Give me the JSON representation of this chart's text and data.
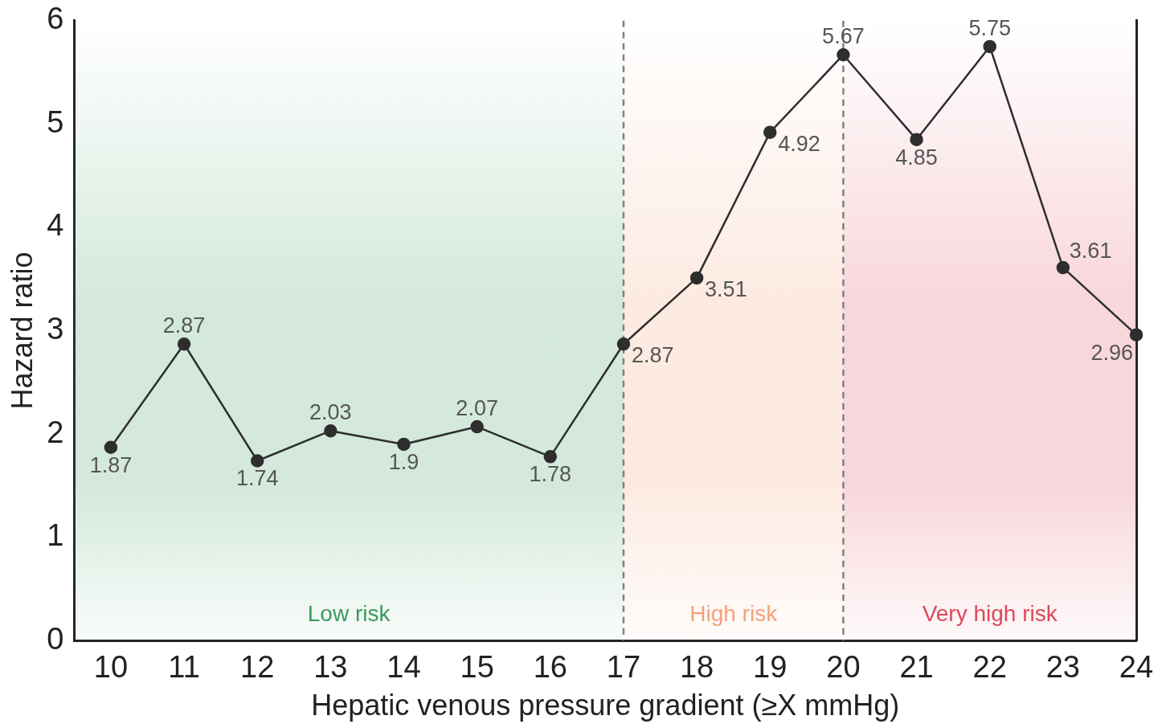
{
  "chart_data": {
    "type": "line",
    "xlabel": "Hepatic venous pressure gradient (≥X mmHg)",
    "ylabel": "Hazard ratio",
    "x": [
      10,
      11,
      12,
      13,
      14,
      15,
      16,
      17,
      18,
      19,
      20,
      21,
      22,
      23,
      24
    ],
    "series": [
      {
        "color": "#2e2e2e",
        "values": [
          1.87,
          2.87,
          1.74,
          2.03,
          1.9,
          2.07,
          1.78,
          2.87,
          3.51,
          4.92,
          5.67,
          4.85,
          5.75,
          3.61,
          2.96
        ]
      }
    ],
    "xlim": [
      9.5,
      24
    ],
    "xticks": [
      10,
      11,
      12,
      13,
      14,
      15,
      16,
      17,
      18,
      19,
      20,
      21,
      22,
      23,
      24
    ],
    "ylim": [
      0,
      6
    ],
    "yticks": [
      0,
      1,
      2,
      3,
      4,
      5,
      6
    ],
    "bands": [
      {
        "axis": "x",
        "from": 9.5,
        "to": 17,
        "label": "Low risk",
        "color": "#3a9a5e"
      },
      {
        "axis": "x",
        "from": 17,
        "to": 20,
        "label": "High risk",
        "color": "#f4a27a"
      },
      {
        "axis": "x",
        "from": 20,
        "to": 24,
        "label": "Very high risk",
        "color": "#e0475a"
      }
    ],
    "ref_lines": [
      {
        "axis": "x",
        "value": 17,
        "color": "#808080",
        "line_style": "dashed"
      },
      {
        "axis": "x",
        "value": 20,
        "color": "#808080",
        "line_style": "dashed"
      }
    ],
    "data_labels": true,
    "marker": "circle",
    "line_style": "solid",
    "grid": false,
    "legend": false
  }
}
